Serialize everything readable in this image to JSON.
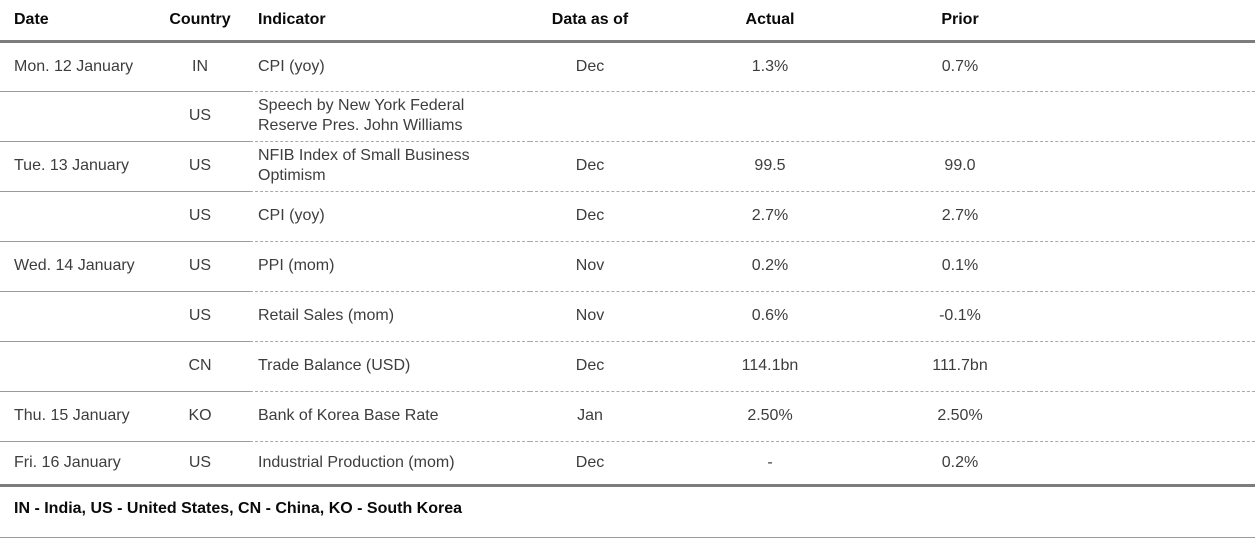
{
  "table": {
    "headers": {
      "date": "Date",
      "country": "Country",
      "indicator": "Indicator",
      "data_as_of": "Data as of",
      "actual": "Actual",
      "prior": "Prior"
    },
    "rows": [
      {
        "date": "Mon. 12 January",
        "country": "IN",
        "indicator": "CPI (yoy)",
        "data_as_of": "Dec",
        "actual": "1.3%",
        "prior": "0.7%"
      },
      {
        "date": "",
        "country": "US",
        "indicator": "Speech by New York Federal Reserve Pres. John Williams",
        "data_as_of": "",
        "actual": "",
        "prior": ""
      },
      {
        "date": "Tue. 13 January",
        "country": "US",
        "indicator": "NFIB Index of Small Business Optimism",
        "data_as_of": "Dec",
        "actual": "99.5",
        "prior": "99.0"
      },
      {
        "date": "",
        "country": "US",
        "indicator": "CPI (yoy)",
        "data_as_of": "Dec",
        "actual": "2.7%",
        "prior": "2.7%"
      },
      {
        "date": "Wed. 14 January",
        "country": "US",
        "indicator": "PPI (mom)",
        "data_as_of": "Nov",
        "actual": "0.2%",
        "prior": "0.1%"
      },
      {
        "date": "",
        "country": "US",
        "indicator": "Retail Sales (mom)",
        "data_as_of": "Nov",
        "actual": "0.6%",
        "prior": "-0.1%"
      },
      {
        "date": "",
        "country": "CN",
        "indicator": "Trade Balance (USD)",
        "data_as_of": "Dec",
        "actual": "114.1bn",
        "prior": "111.7bn"
      },
      {
        "date": "Thu. 15 January",
        "country": "KO",
        "indicator": "Bank of Korea Base Rate",
        "data_as_of": "Jan",
        "actual": "2.50%",
        "prior": "2.50%"
      },
      {
        "date": "Fri. 16 January",
        "country": "US",
        "indicator": "Industrial Production (mom)",
        "data_as_of": "Dec",
        "actual": "-",
        "prior": "0.2%"
      }
    ],
    "footnote": "IN - India, US - United States, CN - China, KO - South Korea"
  },
  "colors": {
    "text": "#3d3d3d",
    "header_text": "#0a0a0a",
    "thick_rule": "#7d7d7d",
    "separator_solid": "#9b9b9b",
    "separator_dashed": "#a9a9a9"
  }
}
